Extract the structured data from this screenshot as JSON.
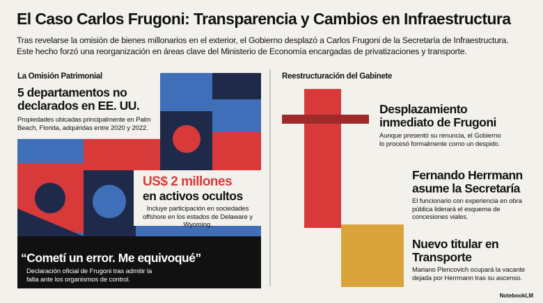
{
  "header": {
    "title": "El Caso Carlos Frugoni: Transparencia y Cambios en Infraestructura",
    "subtitle": "Tras revelarse la omisión de bienes millonarios en el exterior, el Gobierno desplazó a Carlos Frugoni de la Secretaría de Infraestructura. Este hecho forzó una reorganización en áreas clave del Ministerio de Economía encargadas de privatizaciones y transporte."
  },
  "left": {
    "section_label": "La Omisión Patrimonial",
    "items": [
      {
        "heading": "5 departamentos no declarados en EE. UU.",
        "body": "Propiedades ubicadas principalmente en Palm Beach, Florida, adquiridas entre 2020 y 2022."
      },
      {
        "highlight": "US$ 2 millones",
        "heading": "en activos ocultos",
        "body": "Incluye participación en sociedades offshore en los estados de Delaware y Wyoming."
      },
      {
        "quote": "“Cometí un error. Me equivoqué”",
        "body": "Declaración oficial de Frugoni tras admitir la falta ante los organismos de control."
      }
    ]
  },
  "right": {
    "section_label": "Reestructuración del Gabinete",
    "items": [
      {
        "heading": "Desplazamiento inmediato de Frugoni",
        "body": "Aunque presentó su renuncia, el Gobierno lo procesó formalmente como un despido."
      },
      {
        "heading": "Fernando Herrmann asume la Secretaría",
        "body": "El funcionario con experiencia en obra pública liderará el esquema de concesiones viales."
      },
      {
        "heading": "Nuevo titular en Transporte",
        "body": "Mariano Plencovich ocupará la vacante dejada por Herrmann tras su ascenso."
      }
    ]
  },
  "footer": {
    "brand": "NotebookLM"
  }
}
